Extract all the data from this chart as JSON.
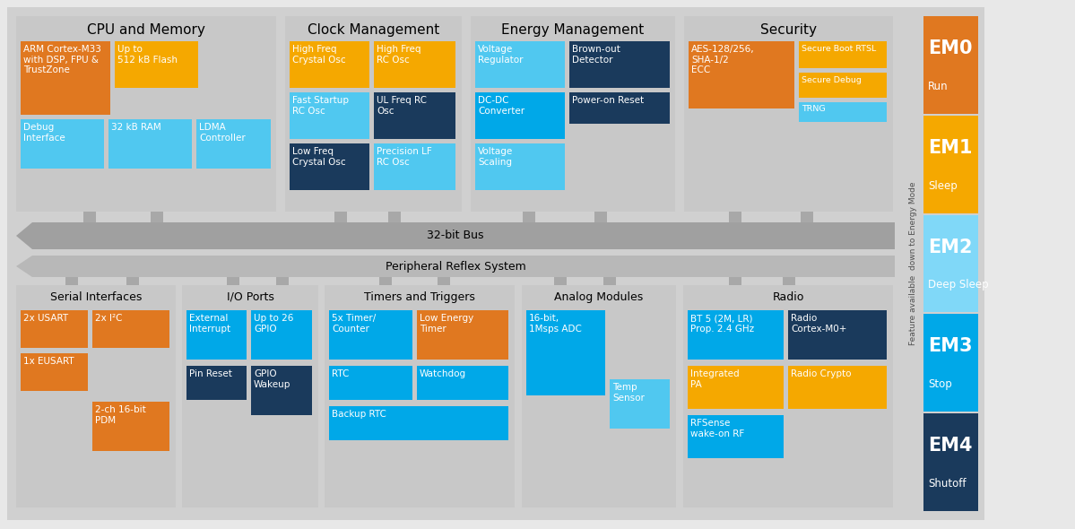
{
  "bg_color": "#e8e8e8",
  "main_bg": "#d0d0d0",
  "colors": {
    "orange": "#E07820",
    "yellow": "#F5A800",
    "light_blue": "#50C8F0",
    "mid_blue": "#00A8E8",
    "dark_blue": "#1A3A5C",
    "gray_box": "#c8c8c8",
    "arrow_gray": "#a0a0a0",
    "prs_gray": "#b8b8b8",
    "vconn_gray": "#a8a8a8"
  },
  "em_modes": [
    {
      "label": "EM0",
      "sublabel": "Run",
      "color": "#E07820"
    },
    {
      "label": "EM1",
      "sublabel": "Sleep",
      "color": "#F5A800"
    },
    {
      "label": "EM2",
      "sublabel": "Deep Sleep",
      "color": "#80D8F8"
    },
    {
      "label": "EM3",
      "sublabel": "Stop",
      "color": "#00A8E8"
    },
    {
      "label": "EM4",
      "sublabel": "Shutoff",
      "color": "#1A3A5C"
    }
  ]
}
